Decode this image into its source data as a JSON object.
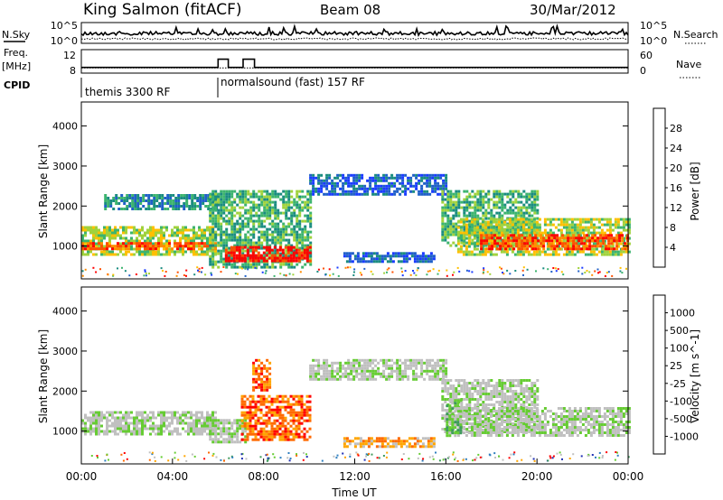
{
  "header": {
    "station": "King Salmon (fitACF)",
    "beam": "Beam 08",
    "date": "30/Mar/2012"
  },
  "strip_labels": {
    "nsky": "N.Sky",
    "nsearch": "N.Search",
    "freq_line1": "Freq.",
    "freq_line2": "[MHz]",
    "nave": "Nave",
    "cpid": "CPID"
  },
  "cpid_segments": [
    {
      "label": "themis 3300 RF",
      "start_hour": 0
    },
    {
      "label": "normalsound (fast) 157 RF",
      "start_hour": 6
    }
  ],
  "colors": {
    "frame": "#000000",
    "power_scale": [
      "#1a3cff",
      "#2060c8",
      "#1a8c80",
      "#3cb46e",
      "#a0d23c",
      "#ffc000",
      "#ff8c00",
      "#ff5000",
      "#ff0000"
    ],
    "velocity_scale": [
      "#1f2fb4",
      "#2f7fbf",
      "#3d9a5a",
      "#66cc33",
      "#c0c0c0",
      "#c0c0c0",
      "#ffa500",
      "#ff6a00",
      "#ff0000"
    ]
  },
  "chart_data": [
    {
      "type": "line",
      "name": "noise-strip",
      "series": [
        {
          "name": "N.Sky"
        },
        {
          "name": "N.Search"
        }
      ],
      "yticks": [
        "10^5",
        "10^0"
      ],
      "yticks_right": [
        "10^5",
        "10^0"
      ]
    },
    {
      "type": "line",
      "name": "freq-strip",
      "series": [
        {
          "name": "Freq."
        },
        {
          "name": "Nave"
        }
      ],
      "yticks": [
        "12",
        "8"
      ],
      "yticks_right": [
        "60",
        "0"
      ],
      "freq_segments": [
        [
          0,
          6.0,
          10.2
        ],
        [
          6.0,
          6.45,
          11.6
        ],
        [
          6.45,
          7.1,
          10.2
        ],
        [
          7.1,
          7.6,
          11.6
        ],
        [
          7.6,
          24,
          10.2
        ]
      ],
      "nave_segments": [
        [
          0,
          24,
          10
        ]
      ]
    },
    {
      "type": "heatmap",
      "name": "power-panel",
      "ylabel": "Slant Range [km]",
      "yticks": [
        1000,
        2000,
        3000,
        4000
      ],
      "ylim": [
        180,
        4600
      ],
      "xlim": [
        0,
        24
      ],
      "colorbar": {
        "label": "Power [dB]",
        "ticks": [
          4,
          8,
          12,
          16,
          20,
          24,
          28
        ],
        "range": [
          0,
          32
        ]
      },
      "regions": [
        {
          "x": [
            0,
            5.9
          ],
          "y": [
            800,
            1500
          ],
          "level": 4
        },
        {
          "x": [
            0,
            5.9
          ],
          "y": [
            900,
            1100
          ],
          "level": 7
        },
        {
          "x": [
            1.0,
            5.9
          ],
          "y": [
            1900,
            2300
          ],
          "level": 2
        },
        {
          "x": [
            5.6,
            10.1
          ],
          "y": [
            500,
            2400
          ],
          "level": 3
        },
        {
          "x": [
            6.3,
            10.0
          ],
          "y": [
            600,
            1000
          ],
          "level": 8
        },
        {
          "x": [
            11.5,
            15.5
          ],
          "y": [
            600,
            850
          ],
          "level": 1
        },
        {
          "x": [
            10.0,
            16.0
          ],
          "y": [
            2300,
            2800
          ],
          "level": 1
        },
        {
          "x": [
            15.8,
            20.0
          ],
          "y": [
            1000,
            2400
          ],
          "level": 3
        },
        {
          "x": [
            16.5,
            24.0
          ],
          "y": [
            800,
            1700
          ],
          "level": 4
        },
        {
          "x": [
            17.5,
            24.0
          ],
          "y": [
            900,
            1300
          ],
          "level": 7
        }
      ]
    },
    {
      "type": "heatmap",
      "name": "velocity-panel",
      "xlabel": "Time UT",
      "ylabel": "Slant Range [km]",
      "yticks": [
        1000,
        2000,
        3000,
        4000
      ],
      "ylim": [
        180,
        4600
      ],
      "xlim": [
        0,
        24
      ],
      "xticks": [
        "00:00",
        "04:00",
        "08:00",
        "12:00",
        "16:00",
        "20:00",
        "00:00"
      ],
      "colorbar": {
        "label": "Velocity [m s^-1]",
        "ticks": [
          1000,
          500,
          100,
          25,
          -25,
          -100,
          -500,
          -1000
        ]
      },
      "regions": [
        {
          "x": [
            0,
            5.9
          ],
          "y": [
            900,
            1500
          ],
          "level": 4
        },
        {
          "x": [
            5.6,
            7.2
          ],
          "y": [
            700,
            1300
          ],
          "level": 4
        },
        {
          "x": [
            7.0,
            10.0
          ],
          "y": [
            800,
            1900
          ],
          "level": 7
        },
        {
          "x": [
            7.5,
            8.3
          ],
          "y": [
            2000,
            2800
          ],
          "level": 7
        },
        {
          "x": [
            11.5,
            15.5
          ],
          "y": [
            600,
            850
          ],
          "level": 6
        },
        {
          "x": [
            10.0,
            16.0
          ],
          "y": [
            2300,
            2800
          ],
          "level": 4
        },
        {
          "x": [
            15.8,
            20.0
          ],
          "y": [
            1000,
            2300
          ],
          "level": 4
        },
        {
          "x": [
            16.5,
            24.0
          ],
          "y": [
            900,
            1600
          ],
          "level": 4
        },
        {
          "x": [
            16.0,
            16.6
          ],
          "y": [
            900,
            1800
          ],
          "level": 3
        }
      ]
    }
  ]
}
